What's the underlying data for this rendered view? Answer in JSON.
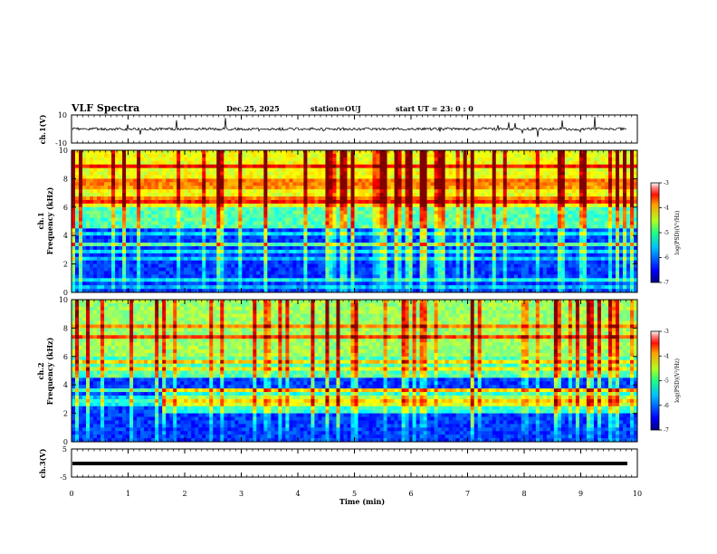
{
  "header": {
    "title": "VLF Spectra",
    "date": "Dec.25, 2025",
    "station": "station=OUJ",
    "start": "start  UT =  23: 0  : 0"
  },
  "chart_data": [
    {
      "type": "line",
      "name": "ch1-waveform",
      "ylabel": "ch.1(V)",
      "ylim": [
        -10,
        10
      ],
      "y_tick_labels": [
        "10",
        "-10"
      ],
      "baseline": 0,
      "description_note": "noisy time series around 0 V with sporadic spikes"
    },
    {
      "type": "heatmap",
      "name": "ch1-spectrogram",
      "ylabel": "ch.1\nFrequency (kHz)",
      "ylim": [
        0,
        10
      ],
      "y_ticks": [
        0,
        2,
        4,
        6,
        8,
        10
      ],
      "xlim": [
        0,
        10
      ],
      "colorbar": {
        "label": "log(PSD)(V²/Hz)",
        "range": [
          -7,
          -3
        ],
        "ticks": [
          -3,
          -4,
          -5,
          -6,
          -7
        ]
      }
    },
    {
      "type": "heatmap",
      "name": "ch2-spectrogram",
      "ylabel": "ch.2\nFrequency (kHz)",
      "ylim": [
        0,
        10
      ],
      "y_ticks": [
        0,
        2,
        4,
        6,
        8,
        10
      ],
      "xlim": [
        0,
        10
      ],
      "colorbar": {
        "label": "log(PSD)(V²/Hz)",
        "range": [
          -7,
          -3
        ],
        "ticks": [
          -3,
          -4,
          -5,
          -6,
          -7
        ]
      }
    },
    {
      "type": "line",
      "name": "ch3-waveform",
      "ylabel": "ch.3(V)",
      "ylim": [
        -5,
        5
      ],
      "y_tick_labels": [
        "5",
        "-5"
      ],
      "baseline": -1.0
    }
  ],
  "xaxis": {
    "label": "Time (min)",
    "ticks": [
      0,
      1,
      2,
      3,
      4,
      5,
      6,
      7,
      8,
      9,
      10
    ],
    "xlim": [
      0,
      10
    ]
  },
  "labels": {
    "ch1_v": "ch.1(V)",
    "ch1_freq_a": "ch.1",
    "ch1_freq_b": "Frequency (kHz)",
    "ch2_freq_a": "ch.2",
    "ch2_freq_b": "Frequency (kHz)",
    "ch3_v": "ch.3(V)",
    "cbar_label": "log(PSD)(V²/Hz)",
    "x_label": "Time (min)",
    "ch1_top": "10",
    "ch1_bot": "-10",
    "ch3_top": "5",
    "ch3_bot": "-5"
  },
  "colors": {
    "axis": "#000000",
    "trace": "#000000"
  }
}
